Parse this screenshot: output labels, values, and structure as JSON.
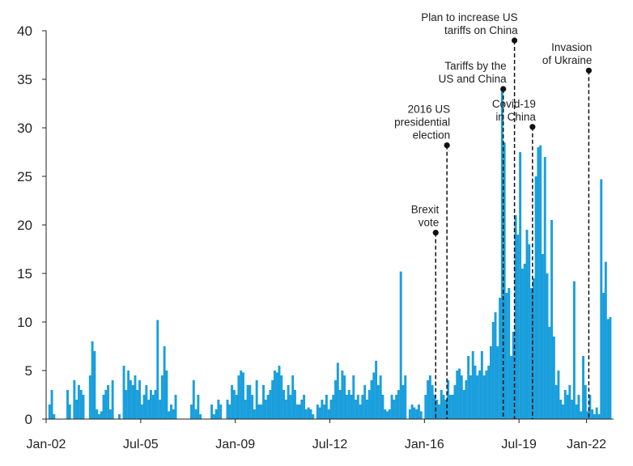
{
  "chart_data": {
    "type": "bar",
    "title": "",
    "xlabel": "",
    "ylabel": "",
    "ylim": [
      0,
      40
    ],
    "y_ticks": [
      0,
      5,
      10,
      15,
      20,
      25,
      30,
      35,
      40
    ],
    "x_start": "2002-01",
    "x_end": "2022-12",
    "x_tick_labels": [
      {
        "date": "2002-01",
        "label": "Jan-02"
      },
      {
        "date": "2005-07",
        "label": "Jul-05"
      },
      {
        "date": "2009-01",
        "label": "Jan-09"
      },
      {
        "date": "2012-07",
        "label": "Jul-12"
      },
      {
        "date": "2016-01",
        "label": "Jan-16"
      },
      {
        "date": "2019-07",
        "label": "Jul-19"
      },
      {
        "date": "2022-01",
        "label": "Jan-22"
      }
    ],
    "grid": false,
    "bar_color": "#1a9fdc",
    "series": [
      {
        "values": [
          {
            "date": "2002-02",
            "value": 1.5
          },
          {
            "date": "2002-03",
            "value": 3.0
          },
          {
            "date": "2002-04",
            "value": 0.5
          },
          {
            "date": "2002-10",
            "value": 3.0
          },
          {
            "date": "2002-11",
            "value": 1.5
          },
          {
            "date": "2003-01",
            "value": 4.0
          },
          {
            "date": "2003-02",
            "value": 2.0
          },
          {
            "date": "2003-03",
            "value": 3.5
          },
          {
            "date": "2003-04",
            "value": 3.0
          },
          {
            "date": "2003-05",
            "value": 2.5
          },
          {
            "date": "2003-08",
            "value": 4.5
          },
          {
            "date": "2003-09",
            "value": 8.0
          },
          {
            "date": "2003-10",
            "value": 7.0
          },
          {
            "date": "2003-11",
            "value": 1.0
          },
          {
            "date": "2003-12",
            "value": 0.5
          },
          {
            "date": "2004-01",
            "value": 0.8
          },
          {
            "date": "2004-02",
            "value": 2.5
          },
          {
            "date": "2004-03",
            "value": 3.0
          },
          {
            "date": "2004-04",
            "value": 3.5
          },
          {
            "date": "2004-05",
            "value": 1.0
          },
          {
            "date": "2004-06",
            "value": 4.0
          },
          {
            "date": "2004-09",
            "value": 0.5
          },
          {
            "date": "2004-11",
            "value": 5.5
          },
          {
            "date": "2004-12",
            "value": 3.0
          },
          {
            "date": "2005-01",
            "value": 5.0
          },
          {
            "date": "2005-02",
            "value": 4.0
          },
          {
            "date": "2005-03",
            "value": 3.5
          },
          {
            "date": "2005-04",
            "value": 4.5
          },
          {
            "date": "2005-05",
            "value": 3.0
          },
          {
            "date": "2005-06",
            "value": 4.0
          },
          {
            "date": "2005-07",
            "value": 1.5
          },
          {
            "date": "2005-08",
            "value": 2.5
          },
          {
            "date": "2005-09",
            "value": 3.5
          },
          {
            "date": "2005-10",
            "value": 2.0
          },
          {
            "date": "2005-11",
            "value": 3.0
          },
          {
            "date": "2005-12",
            "value": 2.5
          },
          {
            "date": "2006-01",
            "value": 3.0
          },
          {
            "date": "2006-02",
            "value": 10.2
          },
          {
            "date": "2006-03",
            "value": 2.0
          },
          {
            "date": "2006-04",
            "value": 4.5
          },
          {
            "date": "2006-05",
            "value": 7.5
          },
          {
            "date": "2006-06",
            "value": 5.0
          },
          {
            "date": "2006-07",
            "value": 0.8
          },
          {
            "date": "2006-08",
            "value": 1.5
          },
          {
            "date": "2006-09",
            "value": 1.0
          },
          {
            "date": "2006-10",
            "value": 2.5
          },
          {
            "date": "2007-05",
            "value": 1.5
          },
          {
            "date": "2007-06",
            "value": 4.0
          },
          {
            "date": "2007-07",
            "value": 1.0
          },
          {
            "date": "2007-08",
            "value": 2.5
          },
          {
            "date": "2007-09",
            "value": 0.5
          },
          {
            "date": "2008-02",
            "value": 1.5
          },
          {
            "date": "2008-03",
            "value": 0.5
          },
          {
            "date": "2008-04",
            "value": 1.0
          },
          {
            "date": "2008-05",
            "value": 2.0
          },
          {
            "date": "2008-06",
            "value": 1.5
          },
          {
            "date": "2008-09",
            "value": 2.0
          },
          {
            "date": "2008-10",
            "value": 1.5
          },
          {
            "date": "2008-11",
            "value": 3.5
          },
          {
            "date": "2008-12",
            "value": 3.0
          },
          {
            "date": "2009-01",
            "value": 2.5
          },
          {
            "date": "2009-02",
            "value": 4.5
          },
          {
            "date": "2009-03",
            "value": 5.0
          },
          {
            "date": "2009-04",
            "value": 4.8
          },
          {
            "date": "2009-05",
            "value": 2.0
          },
          {
            "date": "2009-06",
            "value": 3.5
          },
          {
            "date": "2009-07",
            "value": 3.5
          },
          {
            "date": "2009-08",
            "value": 2.5
          },
          {
            "date": "2009-09",
            "value": 1.0
          },
          {
            "date": "2009-10",
            "value": 4.0
          },
          {
            "date": "2009-11",
            "value": 1.5
          },
          {
            "date": "2009-12",
            "value": 1.5
          },
          {
            "date": "2010-01",
            "value": 3.5
          },
          {
            "date": "2010-02",
            "value": 2.0
          },
          {
            "date": "2010-03",
            "value": 2.5
          },
          {
            "date": "2010-04",
            "value": 3.0
          },
          {
            "date": "2010-05",
            "value": 4.0
          },
          {
            "date": "2010-06",
            "value": 5.0
          },
          {
            "date": "2010-07",
            "value": 4.8
          },
          {
            "date": "2010-08",
            "value": 5.5
          },
          {
            "date": "2010-09",
            "value": 4.5
          },
          {
            "date": "2010-10",
            "value": 3.0
          },
          {
            "date": "2010-11",
            "value": 2.0
          },
          {
            "date": "2010-12",
            "value": 3.5
          },
          {
            "date": "2011-01",
            "value": 2.5
          },
          {
            "date": "2011-02",
            "value": 4.5
          },
          {
            "date": "2011-03",
            "value": 3.0
          },
          {
            "date": "2011-04",
            "value": 1.5
          },
          {
            "date": "2011-05",
            "value": 1.5
          },
          {
            "date": "2011-06",
            "value": 2.0
          },
          {
            "date": "2011-07",
            "value": 2.5
          },
          {
            "date": "2011-08",
            "value": 1.0
          },
          {
            "date": "2011-09",
            "value": 1.2
          },
          {
            "date": "2011-10",
            "value": 1.0
          },
          {
            "date": "2011-11",
            "value": 0.5
          },
          {
            "date": "2012-01",
            "value": 1.5
          },
          {
            "date": "2012-02",
            "value": 1.2
          },
          {
            "date": "2012-03",
            "value": 2.0
          },
          {
            "date": "2012-04",
            "value": 1.5
          },
          {
            "date": "2012-05",
            "value": 2.5
          },
          {
            "date": "2012-06",
            "value": 1.0
          },
          {
            "date": "2012-07",
            "value": 2.0
          },
          {
            "date": "2012-08",
            "value": 2.5
          },
          {
            "date": "2012-09",
            "value": 4.0
          },
          {
            "date": "2012-10",
            "value": 5.8
          },
          {
            "date": "2012-11",
            "value": 3.0
          },
          {
            "date": "2012-12",
            "value": 5.0
          },
          {
            "date": "2013-01",
            "value": 4.5
          },
          {
            "date": "2013-02",
            "value": 2.5
          },
          {
            "date": "2013-03",
            "value": 3.0
          },
          {
            "date": "2013-04",
            "value": 2.5
          },
          {
            "date": "2013-05",
            "value": 4.5
          },
          {
            "date": "2013-06",
            "value": 2.0
          },
          {
            "date": "2013-07",
            "value": 2.5
          },
          {
            "date": "2013-08",
            "value": 1.5
          },
          {
            "date": "2013-09",
            "value": 2.5
          },
          {
            "date": "2013-10",
            "value": 3.5
          },
          {
            "date": "2013-11",
            "value": 2.0
          },
          {
            "date": "2013-12",
            "value": 3.0
          },
          {
            "date": "2014-01",
            "value": 4.0
          },
          {
            "date": "2014-02",
            "value": 4.8
          },
          {
            "date": "2014-03",
            "value": 6.0
          },
          {
            "date": "2014-04",
            "value": 3.5
          },
          {
            "date": "2014-05",
            "value": 4.5
          },
          {
            "date": "2014-06",
            "value": 2.5
          },
          {
            "date": "2014-07",
            "value": 1.0
          },
          {
            "date": "2014-08",
            "value": 0.8
          },
          {
            "date": "2014-09",
            "value": 1.0
          },
          {
            "date": "2014-10",
            "value": 2.5
          },
          {
            "date": "2014-11",
            "value": 2.0
          },
          {
            "date": "2014-12",
            "value": 2.5
          },
          {
            "date": "2015-01",
            "value": 3.0
          },
          {
            "date": "2015-02",
            "value": 15.2
          },
          {
            "date": "2015-03",
            "value": 3.5
          },
          {
            "date": "2015-04",
            "value": 4.5
          },
          {
            "date": "2015-06",
            "value": 1.0
          },
          {
            "date": "2015-07",
            "value": 1.5
          },
          {
            "date": "2015-08",
            "value": 1.2
          },
          {
            "date": "2015-09",
            "value": 1.0
          },
          {
            "date": "2015-10",
            "value": 1.5
          },
          {
            "date": "2015-11",
            "value": 0.8
          },
          {
            "date": "2016-01",
            "value": 2.5
          },
          {
            "date": "2016-02",
            "value": 4.0
          },
          {
            "date": "2016-03",
            "value": 4.5
          },
          {
            "date": "2016-04",
            "value": 3.5
          },
          {
            "date": "2016-05",
            "value": 2.5
          },
          {
            "date": "2016-06",
            "value": 2.0
          },
          {
            "date": "2016-07",
            "value": 1.5
          },
          {
            "date": "2016-08",
            "value": 3.0
          },
          {
            "date": "2016-09",
            "value": 2.5
          },
          {
            "date": "2016-10",
            "value": 2.0
          },
          {
            "date": "2016-11",
            "value": 4.0
          },
          {
            "date": "2016-12",
            "value": 2.5
          },
          {
            "date": "2017-01",
            "value": 2.5
          },
          {
            "date": "2017-02",
            "value": 3.5
          },
          {
            "date": "2017-03",
            "value": 5.0
          },
          {
            "date": "2017-04",
            "value": 5.2
          },
          {
            "date": "2017-05",
            "value": 4.5
          },
          {
            "date": "2017-06",
            "value": 3.0
          },
          {
            "date": "2017-07",
            "value": 4.0
          },
          {
            "date": "2017-08",
            "value": 6.5
          },
          {
            "date": "2017-09",
            "value": 4.5
          },
          {
            "date": "2017-10",
            "value": 7.0
          },
          {
            "date": "2017-11",
            "value": 5.5
          },
          {
            "date": "2017-12",
            "value": 4.5
          },
          {
            "date": "2018-01",
            "value": 5.0
          },
          {
            "date": "2018-02",
            "value": 7.0
          },
          {
            "date": "2018-03",
            "value": 4.5
          },
          {
            "date": "2018-04",
            "value": 5.0
          },
          {
            "date": "2018-05",
            "value": 5.5
          },
          {
            "date": "2018-06",
            "value": 7.5
          },
          {
            "date": "2018-07",
            "value": 10.0
          },
          {
            "date": "2018-08",
            "value": 11.0
          },
          {
            "date": "2018-09",
            "value": 7.5
          },
          {
            "date": "2018-10",
            "value": 12.5
          },
          {
            "date": "2018-11",
            "value": 34.0
          },
          {
            "date": "2018-12",
            "value": 28.5
          },
          {
            "date": "2019-01",
            "value": 13.0
          },
          {
            "date": "2019-02",
            "value": 13.5
          },
          {
            "date": "2019-03",
            "value": 6.5
          },
          {
            "date": "2019-04",
            "value": 9.0
          },
          {
            "date": "2019-05",
            "value": 21.0
          },
          {
            "date": "2019-06",
            "value": 19.0
          },
          {
            "date": "2019-07",
            "value": 27.5
          },
          {
            "date": "2019-08",
            "value": 15.5
          },
          {
            "date": "2019-09",
            "value": 16.0
          },
          {
            "date": "2019-10",
            "value": 19.5
          },
          {
            "date": "2019-11",
            "value": 18.0
          },
          {
            "date": "2019-12",
            "value": 13.5
          },
          {
            "date": "2020-01",
            "value": 14.5
          },
          {
            "date": "2020-02",
            "value": 25.0
          },
          {
            "date": "2020-03",
            "value": 28.0
          },
          {
            "date": "2020-04",
            "value": 28.2
          },
          {
            "date": "2020-05",
            "value": 17.0
          },
          {
            "date": "2020-06",
            "value": 27.0
          },
          {
            "date": "2020-07",
            "value": 15.0
          },
          {
            "date": "2020-08",
            "value": 9.5
          },
          {
            "date": "2020-09",
            "value": 20.5
          },
          {
            "date": "2020-10",
            "value": 8.5
          },
          {
            "date": "2020-11",
            "value": 3.5
          },
          {
            "date": "2020-12",
            "value": 5.0
          },
          {
            "date": "2021-01",
            "value": 2.0
          },
          {
            "date": "2021-02",
            "value": 1.5
          },
          {
            "date": "2021-03",
            "value": 3.0
          },
          {
            "date": "2021-04",
            "value": 2.5
          },
          {
            "date": "2021-05",
            "value": 3.5
          },
          {
            "date": "2021-06",
            "value": 2.0
          },
          {
            "date": "2021-07",
            "value": 14.2
          },
          {
            "date": "2021-08",
            "value": 1.5
          },
          {
            "date": "2021-09",
            "value": 2.5
          },
          {
            "date": "2021-10",
            "value": 0.8
          },
          {
            "date": "2021-11",
            "value": 6.5
          },
          {
            "date": "2021-12",
            "value": 3.5
          },
          {
            "date": "2022-01",
            "value": 0.8
          },
          {
            "date": "2022-02",
            "value": 2.5
          },
          {
            "date": "2022-03",
            "value": 1.0
          },
          {
            "date": "2022-04",
            "value": 0.5
          },
          {
            "date": "2022-05",
            "value": 1.2
          },
          {
            "date": "2022-06",
            "value": 0.5
          },
          {
            "date": "2022-07",
            "value": 24.7
          },
          {
            "date": "2022-08",
            "value": 13.0
          },
          {
            "date": "2022-09",
            "value": 16.2
          },
          {
            "date": "2022-10",
            "value": 10.3
          },
          {
            "date": "2022-11",
            "value": 10.5
          }
        ]
      }
    ],
    "annotations": [
      {
        "label": [
          "Brexit",
          "vote"
        ],
        "date": "2016-06",
        "y": 19.2
      },
      {
        "label": [
          "2016 US",
          "presidential",
          "election"
        ],
        "date": "2016-11",
        "y": 28.2
      },
      {
        "label": [
          "Tariffs by the",
          "US and China"
        ],
        "date": "2018-12",
        "y": 34.0
      },
      {
        "label": [
          "Plan to increase US",
          "tariffs on China"
        ],
        "date": "2019-05",
        "y": 39.0
      },
      {
        "label": [
          "Covid-19",
          "in China"
        ],
        "date": "2020-01",
        "y": 30.1
      },
      {
        "label": [
          "Invasion",
          "of Ukraine"
        ],
        "date": "2022-02",
        "y": 35.9
      }
    ]
  }
}
